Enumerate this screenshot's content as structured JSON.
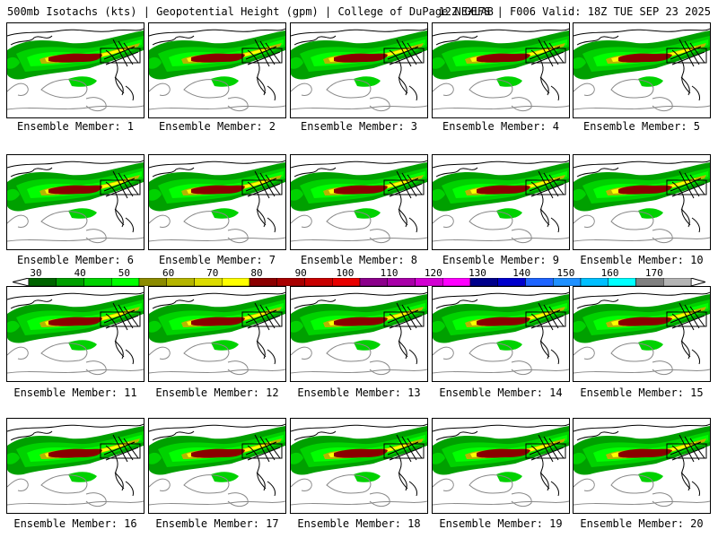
{
  "header": {
    "left": "500mb Isotachs (kts) | Geopotential Height (gpm) | College of DuPage NEXLAB",
    "right": "12Z GEFS | F006 Valid: 18Z TUE SEP 23 2025"
  },
  "member_prefix": "Ensemble Member: ",
  "members": [
    "1",
    "2",
    "3",
    "4",
    "5",
    "6",
    "7",
    "8",
    "9",
    "10",
    "11",
    "12",
    "13",
    "14",
    "15",
    "16",
    "17",
    "18",
    "19",
    "20"
  ],
  "legend": {
    "labels": [
      "30",
      "40",
      "50",
      "60",
      "70",
      "80",
      "90",
      "100",
      "110",
      "120",
      "130",
      "140",
      "150",
      "160",
      "170"
    ],
    "colors": [
      "#006400",
      "#00a000",
      "#00d200",
      "#00ff00",
      "#8b8b00",
      "#b5b500",
      "#dcdc00",
      "#ffff00",
      "#8b0000",
      "#a80000",
      "#c80000",
      "#e80000",
      "#8b008b",
      "#a800a8",
      "#d200d2",
      "#ff00ff",
      "#00008b",
      "#0000cd",
      "#1e64ff",
      "#1e90ff",
      "#00bfff",
      "#00ffff",
      "#808080",
      "#b4b4b4"
    ]
  }
}
